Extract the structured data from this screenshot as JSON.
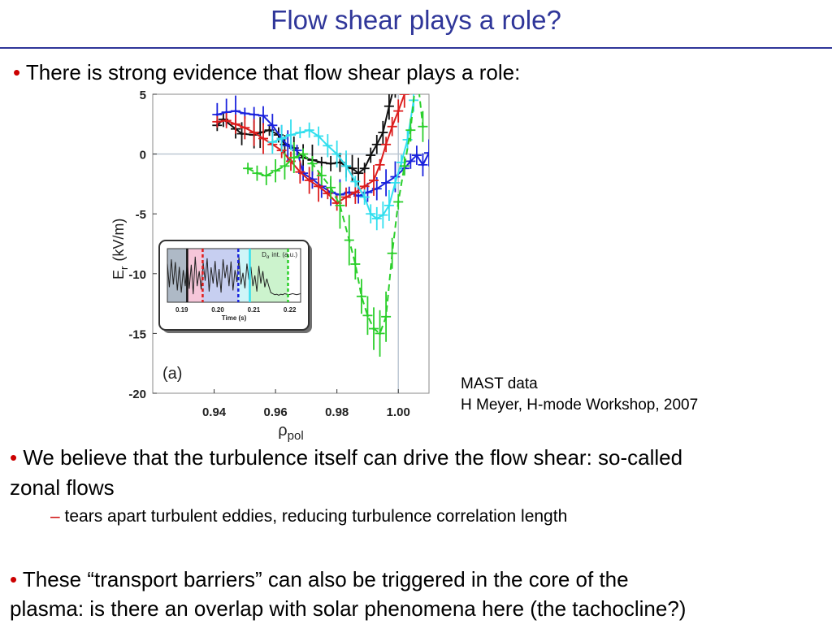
{
  "slide": {
    "title": "Flow shear plays a role?",
    "bullet_glyph": "•",
    "dash_glyph": "–",
    "bullet1": "There is strong evidence that flow shear plays a role:",
    "bullet2_line1": "We believe that the turbulence itself can drive the flow shear: so-called",
    "bullet2_line2": "zonal flows",
    "sub_bullet": "tears apart turbulent eddies, reducing turbulence correlation length",
    "bullet3_line1": "These “transport barriers” can also be triggered in the core of the",
    "bullet3_line2": "plasma: is there an overlap with solar phenomena here (the tachocline?)",
    "credit_line1": "MAST data",
    "credit_line2": "H Meyer, H-mode Workshop, 2007",
    "accent_color": "#2f3699",
    "bullet_color": "#cc0000"
  },
  "chart_data": [
    {
      "type": "scatter",
      "xlabel": "ρ",
      "xlabel_sub": "pol",
      "ylabel": "E",
      "ylabel_sub": "r",
      "ylabel_unit": "(kV/m)",
      "xlim": [
        0.92,
        1.01
      ],
      "ylim": [
        -20,
        5
      ],
      "xticks": [
        "0.94",
        "0.96",
        "0.98",
        "1.00"
      ],
      "xtick_values": [
        0.94,
        0.96,
        0.98,
        1.0
      ],
      "yticks": [
        "5",
        "0",
        "-5",
        "-10",
        "-15",
        "-20"
      ],
      "ytick_values": [
        5,
        0,
        -5,
        -10,
        -15,
        -20
      ],
      "zero_line": 0,
      "separatrix": 1.0,
      "panel_label": "(a)",
      "series": [
        {
          "color": "#111111",
          "dashed": false,
          "points": [
            [
              0.941,
              2.4
            ],
            [
              0.943,
              2.9
            ],
            [
              0.947,
              2.1
            ],
            [
              0.949,
              1.7
            ],
            [
              0.953,
              1.6
            ],
            [
              0.955,
              1.8
            ],
            [
              0.958,
              2.0
            ],
            [
              0.961,
              1.6
            ],
            [
              0.963,
              0.8
            ],
            [
              0.966,
              0.5
            ],
            [
              0.969,
              -0.3
            ],
            [
              0.972,
              -0.5
            ],
            [
              0.975,
              -0.7
            ],
            [
              0.978,
              -0.8
            ],
            [
              0.981,
              -0.7
            ],
            [
              0.983,
              -1.0
            ],
            [
              0.985,
              -1.2
            ],
            [
              0.987,
              -1.6
            ],
            [
              0.989,
              -1.2
            ],
            [
              0.991,
              -0.1
            ],
            [
              0.993,
              0.8
            ],
            [
              0.995,
              1.8
            ],
            [
              0.997,
              4.0
            ],
            [
              0.999,
              6.0
            ]
          ]
        },
        {
          "color": "#1a22dd",
          "dashed": false,
          "points": [
            [
              0.941,
              3.3
            ],
            [
              0.944,
              3.5
            ],
            [
              0.947,
              3.6
            ],
            [
              0.95,
              3.4
            ],
            [
              0.953,
              3.3
            ],
            [
              0.956,
              3.2
            ],
            [
              0.959,
              2.4
            ],
            [
              0.962,
              1.3
            ],
            [
              0.964,
              0.7
            ],
            [
              0.967,
              0.3
            ],
            [
              0.969,
              -1.6
            ],
            [
              0.972,
              -2.1
            ],
            [
              0.975,
              -2.7
            ],
            [
              0.978,
              -3.2
            ],
            [
              0.981,
              -3.4
            ],
            [
              0.984,
              -3.2
            ],
            [
              0.987,
              -3.5
            ],
            [
              0.99,
              -3.2
            ],
            [
              0.993,
              -2.9
            ],
            [
              0.996,
              -2.4
            ],
            [
              0.999,
              -1.9
            ],
            [
              1.002,
              -1.2
            ],
            [
              1.004,
              -0.6
            ],
            [
              1.006,
              -0.1
            ],
            [
              1.008,
              -0.9
            ],
            [
              1.01,
              0.1
            ]
          ]
        },
        {
          "color": "#dd1e1e",
          "dashed": false,
          "points": [
            [
              0.941,
              2.7
            ],
            [
              0.944,
              2.8
            ],
            [
              0.947,
              2.5
            ],
            [
              0.95,
              2.2
            ],
            [
              0.953,
              1.8
            ],
            [
              0.956,
              1.3
            ],
            [
              0.959,
              0.8
            ],
            [
              0.962,
              0.3
            ],
            [
              0.965,
              -0.6
            ],
            [
              0.968,
              -1.5
            ],
            [
              0.971,
              -2.2
            ],
            [
              0.974,
              -2.7
            ],
            [
              0.977,
              -3.3
            ],
            [
              0.98,
              -4.1
            ],
            [
              0.983,
              -3.6
            ],
            [
              0.986,
              -3.2
            ],
            [
              0.989,
              -2.7
            ],
            [
              0.992,
              -2.2
            ],
            [
              0.994,
              -0.9
            ],
            [
              0.996,
              0.8
            ],
            [
              0.998,
              2.3
            ],
            [
              1.0,
              3.6
            ],
            [
              1.002,
              5.0
            ]
          ]
        },
        {
          "color": "#33dfee",
          "dashed": false,
          "points": [
            [
              0.959,
              1.0
            ],
            [
              0.962,
              1.3
            ],
            [
              0.965,
              1.6
            ],
            [
              0.968,
              1.8
            ],
            [
              0.971,
              2.0
            ],
            [
              0.974,
              1.5
            ],
            [
              0.977,
              0.7
            ],
            [
              0.98,
              0.0
            ],
            [
              0.983,
              -1.0
            ],
            [
              0.986,
              -2.3
            ],
            [
              0.989,
              -3.6
            ],
            [
              0.991,
              -5.0
            ],
            [
              0.993,
              -5.4
            ],
            [
              0.995,
              -5.1
            ],
            [
              0.997,
              -4.3
            ],
            [
              0.999,
              -2.4
            ],
            [
              1.001,
              -0.7
            ],
            [
              1.003,
              1.2
            ],
            [
              1.005,
              4.5
            ]
          ]
        },
        {
          "color": "#2bcf2b",
          "dashed": true,
          "points": [
            [
              0.951,
              -1.2
            ],
            [
              0.954,
              -1.6
            ],
            [
              0.957,
              -1.8
            ],
            [
              0.96,
              -1.4
            ],
            [
              0.963,
              -1.0
            ],
            [
              0.966,
              -0.3
            ],
            [
              0.969,
              0.0
            ],
            [
              0.972,
              -0.8
            ],
            [
              0.975,
              -1.8
            ],
            [
              0.978,
              -2.8
            ],
            [
              0.981,
              -4.3
            ],
            [
              0.984,
              -7.2
            ],
            [
              0.986,
              -9.2
            ],
            [
              0.988,
              -11.9
            ],
            [
              0.99,
              -13.5
            ],
            [
              0.992,
              -14.6
            ],
            [
              0.994,
              -15.0
            ],
            [
              0.996,
              -13.6
            ],
            [
              0.998,
              -8.3
            ],
            [
              1.0,
              -4.0
            ],
            [
              1.002,
              -1.0
            ],
            [
              1.004,
              2.0
            ],
            [
              1.006,
              7.0
            ],
            [
              1.008,
              2.3
            ]
          ]
        }
      ]
    },
    {
      "type": "line",
      "title": "D",
      "title_sub": "α",
      "title_rest": "int. (a.u.)",
      "xlabel": "Time (s)",
      "xticks": [
        "0.19",
        "0.20",
        "0.21",
        "0.22"
      ],
      "xtick_values": [
        0.19,
        0.2,
        0.21,
        0.22
      ],
      "xlim": [
        0.186,
        0.223
      ],
      "band_colors": [
        "#9aa8b8",
        "#f4b8cf",
        "#b9c3ee",
        "#c2f2f6",
        "#bff0c0"
      ],
      "marker_times": [
        0.1915,
        0.1958,
        0.2057,
        0.2089,
        0.2195
      ],
      "marker_colors": [
        "#111111",
        "#dd1e1e",
        "#1a22dd",
        "#33dfee",
        "#2bcf2b"
      ],
      "trace": [
        0.72,
        0.28,
        0.8,
        0.33,
        0.75,
        0.22,
        0.66,
        0.18,
        0.6,
        0.3,
        0.78,
        0.25,
        0.7,
        0.15,
        0.85,
        0.3,
        0.58,
        0.24,
        0.74,
        0.4,
        0.82,
        0.2,
        0.65,
        0.35,
        0.77,
        0.28,
        0.62,
        0.18,
        0.8,
        0.45,
        0.7,
        0.3,
        0.76,
        0.22,
        0.6,
        0.38,
        0.84,
        0.33,
        0.55,
        0.26,
        0.72,
        0.42,
        0.66,
        0.3,
        0.5,
        0.2,
        0.68,
        0.35,
        0.58,
        0.28,
        0.44,
        0.3,
        0.18,
        0.16,
        0.14,
        0.15,
        0.13,
        0.15,
        0.14,
        0.16,
        0.15,
        0.14,
        0.15,
        0.16,
        0.15,
        0.14,
        0.15,
        0.16
      ]
    }
  ]
}
